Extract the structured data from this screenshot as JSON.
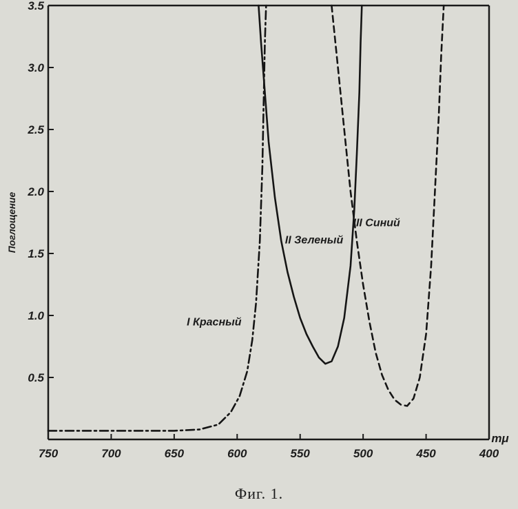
{
  "caption": "Фиг. 1.",
  "chart_data": {
    "type": "line",
    "ylabel": "Поглощение",
    "xunit": "mμ",
    "xlim": [
      750,
      400
    ],
    "ylim": [
      0,
      3.5
    ],
    "x_ticks": [
      750,
      700,
      650,
      600,
      550,
      500,
      450,
      400
    ],
    "y_ticks": [
      0.5,
      1.0,
      1.5,
      2.0,
      2.5,
      3.0,
      3.5
    ],
    "y_tick_labels": [
      "0.5",
      "1.0",
      "1.5",
      "2.0",
      "2.5",
      "3.0",
      "3.5"
    ],
    "grid": false,
    "series": [
      {
        "name": "I Красный",
        "style": "dashdot",
        "x": [
          750,
          700,
          650,
          630,
          615,
          605,
          598,
          592,
          588,
          585,
          582,
          580,
          579,
          578,
          577
        ],
        "y": [
          0.07,
          0.07,
          0.07,
          0.08,
          0.12,
          0.22,
          0.35,
          0.55,
          0.8,
          1.1,
          1.6,
          2.2,
          2.7,
          3.2,
          3.5
        ]
      },
      {
        "name": "II Зеленый",
        "style": "solid",
        "x": [
          583,
          581,
          578,
          575,
          570,
          565,
          560,
          555,
          550,
          545,
          540,
          535,
          530,
          525,
          520,
          515,
          510,
          507,
          505,
          503,
          502,
          501
        ],
        "y": [
          3.5,
          3.2,
          2.8,
          2.4,
          1.95,
          1.6,
          1.35,
          1.15,
          0.98,
          0.85,
          0.75,
          0.66,
          0.61,
          0.63,
          0.75,
          0.98,
          1.4,
          1.85,
          2.3,
          2.8,
          3.2,
          3.5
        ]
      },
      {
        "name": "III Синий",
        "style": "dashed",
        "x": [
          525,
          520,
          515,
          510,
          505,
          500,
          495,
          490,
          485,
          480,
          475,
          470,
          465,
          460,
          455,
          450,
          446,
          443,
          440,
          438,
          436
        ],
        "y": [
          3.5,
          3.0,
          2.5,
          2.0,
          1.6,
          1.25,
          0.95,
          0.7,
          0.52,
          0.4,
          0.32,
          0.28,
          0.27,
          0.33,
          0.5,
          0.85,
          1.4,
          2.0,
          2.6,
          3.1,
          3.5
        ]
      }
    ]
  }
}
